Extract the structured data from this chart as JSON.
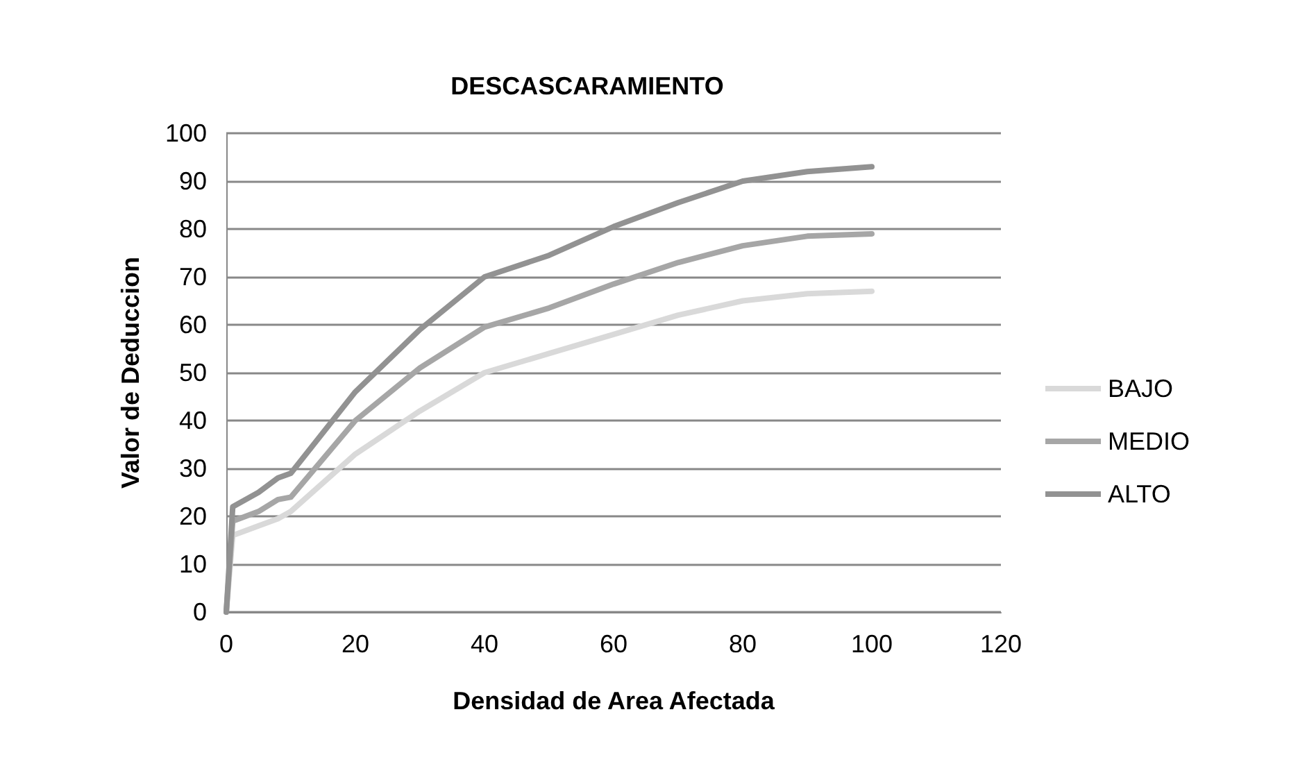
{
  "chart_data": {
    "type": "line",
    "title": "DESCASCARAMIENTO",
    "xlabel": "Densidad de Area Afectada",
    "ylabel": "Valor de Deduccion",
    "x": [
      0,
      1,
      5,
      8,
      10,
      20,
      30,
      40,
      50,
      60,
      70,
      80,
      90,
      100
    ],
    "series": [
      {
        "name": "BAJO",
        "color": "#d9d9d9",
        "values": [
          0,
          16,
          18,
          19.5,
          21,
          33,
          42,
          50,
          54,
          58,
          62,
          65,
          66.5,
          67
        ]
      },
      {
        "name": "MEDIO",
        "color": "#a6a6a6",
        "values": [
          0,
          19,
          21,
          23.5,
          24,
          40,
          51,
          59.5,
          63.5,
          68.5,
          73,
          76.5,
          78.5,
          79
        ]
      },
      {
        "name": "ALTO",
        "color": "#929292",
        "values": [
          0,
          22,
          25,
          28,
          29,
          46,
          59,
          70,
          74.5,
          80.5,
          85.5,
          90,
          92,
          93
        ]
      }
    ],
    "xlim": [
      0,
      120
    ],
    "xticks": [
      0,
      20,
      40,
      60,
      80,
      100,
      120
    ],
    "ylim": [
      0,
      100
    ],
    "yticks": [
      0,
      10,
      20,
      30,
      40,
      50,
      60,
      70,
      80,
      90,
      100
    ],
    "grid": "y",
    "legend": "right",
    "marker": "none",
    "line_style": "solid"
  }
}
